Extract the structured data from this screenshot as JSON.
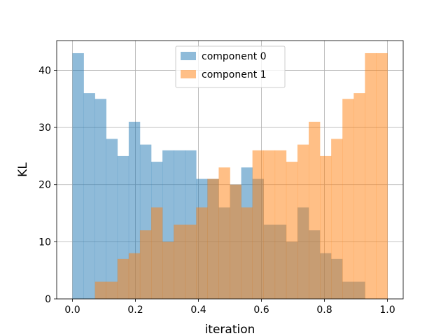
{
  "chart_data": {
    "type": "bar",
    "subtype": "overlapping-histogram",
    "title": "",
    "xlabel": "iteration",
    "ylabel": "KL",
    "xlim": [
      -0.05,
      1.05
    ],
    "ylim": [
      0,
      45.2
    ],
    "xticks": [
      "0.0",
      "0.2",
      "0.4",
      "0.6",
      "0.8",
      "1.0"
    ],
    "yticks": [
      "0",
      "10",
      "20",
      "30",
      "40"
    ],
    "grid": true,
    "legend": {
      "placement": "upper-center"
    },
    "bin_width": 0.0357,
    "bin_starts": [
      0.0,
      0.0357,
      0.0714,
      0.1071,
      0.1429,
      0.1786,
      0.2143,
      0.25,
      0.2857,
      0.3214,
      0.3571,
      0.3929,
      0.4286,
      0.4643,
      0.5,
      0.5357,
      0.5714,
      0.6071,
      0.6429,
      0.6786,
      0.7143,
      0.75,
      0.7857,
      0.8214,
      0.8571,
      0.8929,
      0.9286,
      0.9643
    ],
    "series": [
      {
        "name": "component 0",
        "color": "#1f77b4",
        "alpha": 0.5,
        "values": [
          43,
          36,
          35,
          28,
          25,
          31,
          27,
          24,
          26,
          26,
          26,
          21,
          21,
          16,
          20,
          23,
          21,
          13,
          13,
          10,
          16,
          12,
          8,
          7,
          3,
          3,
          0,
          0
        ]
      },
      {
        "name": "component 1",
        "color": "#ff7f0e",
        "alpha": 0.5,
        "values": [
          0,
          0,
          3,
          3,
          7,
          8,
          12,
          16,
          10,
          13,
          13,
          16,
          21,
          23,
          20,
          16,
          26,
          26,
          26,
          24,
          27,
          31,
          25,
          28,
          35,
          36,
          43,
          43
        ]
      }
    ]
  }
}
